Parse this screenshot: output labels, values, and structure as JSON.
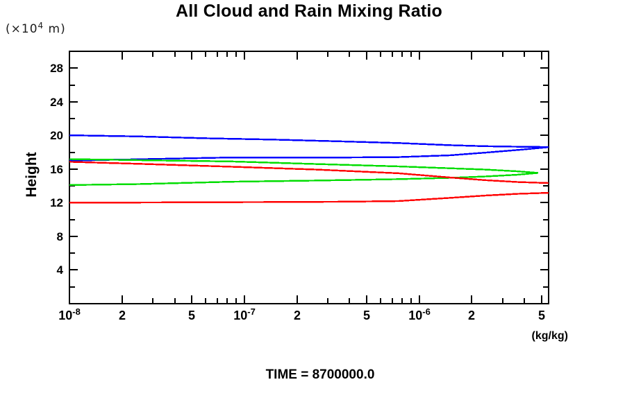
{
  "chart_data": {
    "type": "line",
    "title": "All Cloud and Rain Mixing Ratio",
    "xlabel": "(kg/kg)",
    "ylabel": "Height",
    "y_units": {
      "prefix": "(×10",
      "exp": "4",
      "suffix": " m)"
    },
    "time_label": "TIME = 8700000.0",
    "x_scale": "log",
    "xlim": [
      1e-08,
      5.5e-06
    ],
    "ylim": [
      0,
      30
    ],
    "grid": false,
    "legend": "none",
    "frame": "box-with-inward-ticks",
    "xticks": [
      {
        "v": 1e-08,
        "label": "10",
        "sup": "-8"
      },
      {
        "v": 2e-08,
        "label": "2"
      },
      {
        "v": 5e-08,
        "label": "5"
      },
      {
        "v": 1e-07,
        "label": "10",
        "sup": "-7"
      },
      {
        "v": 2e-07,
        "label": "2"
      },
      {
        "v": 5e-07,
        "label": "5"
      },
      {
        "v": 1e-06,
        "label": "10",
        "sup": "-6"
      },
      {
        "v": 2e-06,
        "label": "2"
      },
      {
        "v": 5e-06,
        "label": "5"
      }
    ],
    "xticks_minor": [
      3e-08,
      4e-08,
      6e-08,
      7e-08,
      8e-08,
      9e-08,
      3e-07,
      4e-07,
      6e-07,
      7e-07,
      8e-07,
      9e-07,
      3e-06,
      4e-06
    ],
    "yticks_major": [
      {
        "v": 4,
        "label": "4"
      },
      {
        "v": 8,
        "label": "8"
      },
      {
        "v": 12,
        "label": "12"
      },
      {
        "v": 16,
        "label": "16"
      },
      {
        "v": 20,
        "label": "20"
      },
      {
        "v": 24,
        "label": "24"
      },
      {
        "v": 28,
        "label": "28"
      }
    ],
    "yticks_minor": [
      2,
      6,
      10,
      14,
      18,
      22,
      26,
      30
    ],
    "series": [
      {
        "name": "blue-upper-branch",
        "color": "#0000ff",
        "points": [
          [
            1e-08,
            20.02
          ],
          [
            2.5e-08,
            19.88
          ],
          [
            6.2e-08,
            19.66
          ],
          [
            1.5e-07,
            19.5
          ],
          [
            3.8e-07,
            19.28
          ],
          [
            7.6e-07,
            19.1
          ],
          [
            1.5e-06,
            18.84
          ],
          [
            2.4e-06,
            18.72
          ],
          [
            3.7e-06,
            18.66
          ],
          [
            5.5e-06,
            18.62
          ]
        ]
      },
      {
        "name": "blue-lower-branch",
        "color": "#0000ff",
        "points": [
          [
            1e-08,
            17.0
          ],
          [
            3.3e-08,
            17.22
          ],
          [
            8.5e-08,
            17.38
          ],
          [
            2.6e-07,
            17.36
          ],
          [
            7.6e-07,
            17.42
          ],
          [
            1.5e-06,
            17.64
          ],
          [
            2.4e-06,
            17.96
          ],
          [
            3.7e-06,
            18.28
          ],
          [
            5.5e-06,
            18.6
          ]
        ]
      },
      {
        "name": "green-upper-branch",
        "color": "#00dd00",
        "points": [
          [
            1e-08,
            17.18
          ],
          [
            2.5e-08,
            17.06
          ],
          [
            8.5e-08,
            16.9
          ],
          [
            2.6e-07,
            16.6
          ],
          [
            7.6e-07,
            16.32
          ],
          [
            1.5e-06,
            16.1
          ],
          [
            2.4e-06,
            15.94
          ],
          [
            3.6e-06,
            15.74
          ],
          [
            4.8e-06,
            15.54
          ]
        ]
      },
      {
        "name": "green-lower-branch",
        "color": "#00dd00",
        "points": [
          [
            1e-08,
            14.1
          ],
          [
            2.5e-08,
            14.22
          ],
          [
            8.5e-08,
            14.5
          ],
          [
            2.6e-07,
            14.64
          ],
          [
            7.6e-07,
            14.8
          ],
          [
            1.5e-06,
            14.96
          ],
          [
            2.4e-06,
            15.12
          ],
          [
            3.6e-06,
            15.32
          ],
          [
            4.8e-06,
            15.54
          ]
        ]
      },
      {
        "name": "red-upper-branch",
        "color": "#ff0000",
        "points": [
          [
            1e-08,
            16.86
          ],
          [
            2.5e-08,
            16.62
          ],
          [
            8.5e-08,
            16.28
          ],
          [
            2.6e-07,
            15.94
          ],
          [
            7.6e-07,
            15.5
          ],
          [
            1.5e-06,
            15.0
          ],
          [
            2.4e-06,
            14.68
          ],
          [
            3.7e-06,
            14.46
          ],
          [
            5.5e-06,
            14.34
          ]
        ]
      },
      {
        "name": "red-lower-branch",
        "color": "#ff0000",
        "points": [
          [
            1e-08,
            12.0
          ],
          [
            3.9e-08,
            12.04
          ],
          [
            1.5e-07,
            12.08
          ],
          [
            3.8e-07,
            12.12
          ],
          [
            7.6e-07,
            12.2
          ],
          [
            1.5e-06,
            12.58
          ],
          [
            2.4e-06,
            12.86
          ],
          [
            3.7e-06,
            13.06
          ],
          [
            5.5e-06,
            13.18
          ]
        ]
      }
    ]
  }
}
